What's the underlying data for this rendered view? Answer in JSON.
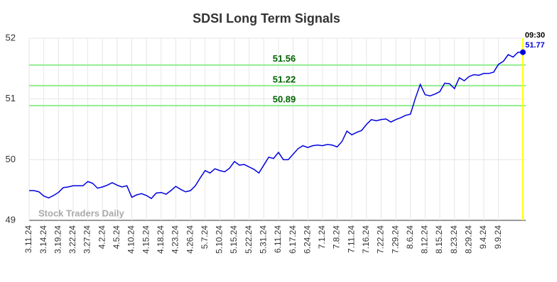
{
  "chart_data": {
    "type": "line",
    "title": "SDSI Long Term Signals",
    "watermark": "Stock Traders Daily",
    "categories": [
      "3.11.24",
      null,
      null,
      "3.14.24",
      null,
      null,
      "3.19.24",
      null,
      null,
      "3.22.24",
      null,
      null,
      "3.27.24",
      null,
      null,
      "4.2.24",
      null,
      null,
      "4.5.24",
      null,
      null,
      "4.10.24",
      null,
      null,
      "4.15.24",
      null,
      null,
      "4.18.24",
      null,
      null,
      "4.23.24",
      null,
      null,
      "4.26.24",
      null,
      null,
      "5.7.24",
      null,
      null,
      "5.10.24",
      null,
      null,
      "5.15.24",
      null,
      null,
      "5.22.24",
      null,
      null,
      "5.31.24",
      null,
      null,
      "6.11.24",
      null,
      null,
      "6.17.24",
      null,
      null,
      "6.24.24",
      null,
      null,
      "7.1.24",
      null,
      null,
      "7.8.24",
      null,
      null,
      "7.11.24",
      null,
      null,
      "7.16.24",
      null,
      null,
      "7.22.24",
      null,
      null,
      "7.29.24",
      null,
      null,
      "8.6.24",
      null,
      null,
      "8.12.24",
      null,
      null,
      "8.15.24",
      null,
      null,
      "8.23.24",
      null,
      null,
      "8.29.24",
      null,
      null,
      "9.4.24",
      null,
      null,
      "9.9.24",
      null,
      null,
      null,
      null,
      null
    ],
    "series": [
      {
        "name": "SDSI",
        "color": "#0000e0",
        "values": [
          49.49,
          49.49,
          49.47,
          49.4,
          49.37,
          49.41,
          49.46,
          49.54,
          49.55,
          49.57,
          49.57,
          49.57,
          49.64,
          49.61,
          49.53,
          49.55,
          49.58,
          49.62,
          49.58,
          49.55,
          49.57,
          49.38,
          49.42,
          49.44,
          49.41,
          49.36,
          49.45,
          49.46,
          49.43,
          49.49,
          49.56,
          49.51,
          49.47,
          49.49,
          49.57,
          49.7,
          49.82,
          49.78,
          49.85,
          49.82,
          49.8,
          49.86,
          49.97,
          49.91,
          49.92,
          49.88,
          49.84,
          49.78,
          49.91,
          50.04,
          50.02,
          50.12,
          50.0,
          50.0,
          50.09,
          50.18,
          50.23,
          50.2,
          50.23,
          50.24,
          50.23,
          50.25,
          50.24,
          50.21,
          50.3,
          50.47,
          50.41,
          50.45,
          50.48,
          50.58,
          50.66,
          50.64,
          50.66,
          50.67,
          50.62,
          50.66,
          50.69,
          50.73,
          50.75,
          51.01,
          51.24,
          51.07,
          51.05,
          51.08,
          51.12,
          51.26,
          51.25,
          51.17,
          51.35,
          51.3,
          51.37,
          51.4,
          51.39,
          51.42,
          51.42,
          51.44,
          51.57,
          51.62,
          51.73,
          51.69,
          51.77,
          51.77
        ]
      }
    ],
    "signal_lines": {
      "color": "#90ee90",
      "label_color": "#006400",
      "values": [
        51.56,
        51.22,
        50.89
      ]
    },
    "last_point": {
      "time": "09:30",
      "value": 51.77,
      "marker_line_color": "#ffff00"
    },
    "ylim": [
      49,
      52
    ],
    "yticks": [
      49,
      50,
      51,
      52
    ],
    "grid": true
  }
}
